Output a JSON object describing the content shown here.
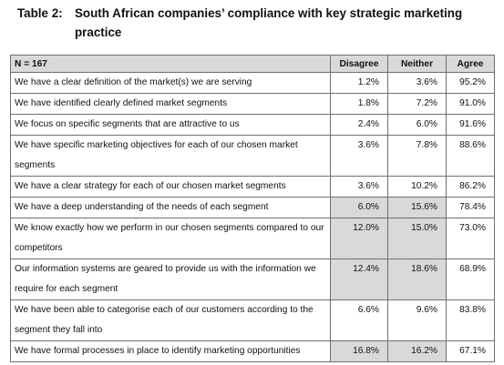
{
  "caption": {
    "label": "Table 2:",
    "text": "South African companies’ compliance with key strategic marketing practice"
  },
  "table": {
    "headers": [
      "N = 167",
      "Disagree",
      "Neither",
      "Agree"
    ],
    "rows": [
      {
        "statement": "We have a clear definition of the market(s) we are serving",
        "disagree": "1.2%",
        "neither": "3.6%",
        "agree": "95.2%"
      },
      {
        "statement": "We have identified clearly defined market segments",
        "disagree": "1.8%",
        "neither": "7.2%",
        "agree": "91.0%"
      },
      {
        "statement": "We focus on specific segments that are attractive to us",
        "disagree": "2.4%",
        "neither": "6.0%",
        "agree": "91.6%"
      },
      {
        "statement": "We have specific marketing objectives for each of our chosen market segments",
        "disagree": "3.6%",
        "neither": "7.8%",
        "agree": "88.6%"
      },
      {
        "statement": "We have a clear strategy for each of our chosen market segments",
        "disagree": "3.6%",
        "neither": "10.2%",
        "agree": "86.2%"
      },
      {
        "statement": "We have a deep understanding of the needs of each segment",
        "disagree": "6.0%",
        "neither": "15.6%",
        "agree": "78.4%"
      },
      {
        "statement": "We know exactly how we perform in our chosen segments compared to our competitors",
        "disagree": "12.0%",
        "neither": "15.0%",
        "agree": "73.0%"
      },
      {
        "statement": "Our information systems are geared to provide us with the information we require for each segment",
        "disagree": "12.4%",
        "neither": "18.6%",
        "agree": "68.9%"
      },
      {
        "statement": "We have been able to categorise each of our customers according to the segment they fall into",
        "disagree": "6.6%",
        "neither": "9.6%",
        "agree": "83.8%"
      },
      {
        "statement": "We have formal processes in place to identify marketing opportunities",
        "disagree": "16.8%",
        "neither": "16.2%",
        "agree": "67.1%"
      }
    ]
  }
}
